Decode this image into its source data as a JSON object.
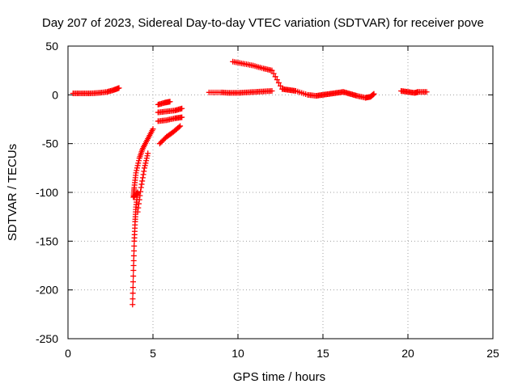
{
  "chart_data": {
    "type": "scatter",
    "title": "Day 207 of 2023, Sidereal Day-to-day VTEC variation (SDTVAR) for receiver pove",
    "xlabel": "GPS time / hours",
    "ylabel": "SDTVAR / TECUs",
    "xlim": [
      0,
      25
    ],
    "ylim": [
      -250,
      50
    ],
    "xticks": [
      0,
      5,
      10,
      15,
      20,
      25
    ],
    "yticks": [
      50,
      0,
      -50,
      -100,
      -150,
      -200,
      -250
    ],
    "grid": true,
    "grid_style": "dotted",
    "marker": "plus",
    "color": "#ff0000",
    "series": [
      {
        "points": [
          [
            0.3,
            1.5
          ],
          [
            0.8,
            1.5
          ],
          [
            1.3,
            1.5
          ],
          [
            1.8,
            2
          ],
          [
            2.3,
            3
          ],
          [
            2.7,
            5
          ],
          [
            3.0,
            7
          ],
          [
            3.8,
            -215
          ],
          [
            3.85,
            -180
          ],
          [
            3.9,
            -150
          ],
          [
            3.95,
            -130
          ],
          [
            4.0,
            -115
          ],
          [
            4.1,
            -100
          ],
          [
            3.85,
            -105
          ],
          [
            3.9,
            -95
          ],
          [
            4.0,
            -80
          ],
          [
            4.2,
            -65
          ],
          [
            4.4,
            -55
          ],
          [
            4.7,
            -45
          ],
          [
            5.0,
            -35
          ],
          [
            4.1,
            -120
          ],
          [
            4.3,
            -95
          ],
          [
            4.5,
            -75
          ],
          [
            4.7,
            -60
          ],
          [
            5.4,
            -50
          ],
          [
            5.8,
            -43
          ],
          [
            6.2,
            -38
          ],
          [
            6.6,
            -32
          ],
          [
            5.3,
            -27
          ],
          [
            5.8,
            -26
          ],
          [
            6.3,
            -24
          ],
          [
            6.7,
            -23
          ],
          [
            5.3,
            -18
          ],
          [
            5.8,
            -17
          ],
          [
            6.3,
            -16
          ],
          [
            6.7,
            -14
          ],
          [
            5.3,
            -10
          ],
          [
            5.7,
            -8
          ],
          [
            6.0,
            -7
          ],
          [
            8.3,
            2.5
          ],
          [
            9.0,
            2.5
          ],
          [
            9.5,
            2.0
          ],
          [
            10.0,
            2.0
          ],
          [
            10.5,
            2.5
          ],
          [
            11.0,
            3
          ],
          [
            11.5,
            3.5
          ],
          [
            12.0,
            4
          ],
          [
            9.7,
            34
          ],
          [
            10.3,
            32
          ],
          [
            10.9,
            30
          ],
          [
            11.5,
            27
          ],
          [
            12.0,
            25
          ],
          [
            12.6,
            6
          ],
          [
            13.0,
            5
          ],
          [
            13.4,
            4
          ],
          [
            14.1,
            0
          ],
          [
            14.6,
            -1
          ],
          [
            15.0,
            0
          ],
          [
            15.4,
            1
          ],
          [
            15.8,
            2
          ],
          [
            16.2,
            3
          ],
          [
            16.6,
            1
          ],
          [
            17.0,
            -1
          ],
          [
            17.5,
            -3
          ],
          [
            17.8,
            -2
          ],
          [
            18.0,
            1
          ],
          [
            19.6,
            4
          ],
          [
            20.0,
            3
          ],
          [
            20.4,
            2
          ],
          [
            20.6,
            3
          ],
          [
            21.1,
            3
          ]
        ]
      }
    ]
  }
}
